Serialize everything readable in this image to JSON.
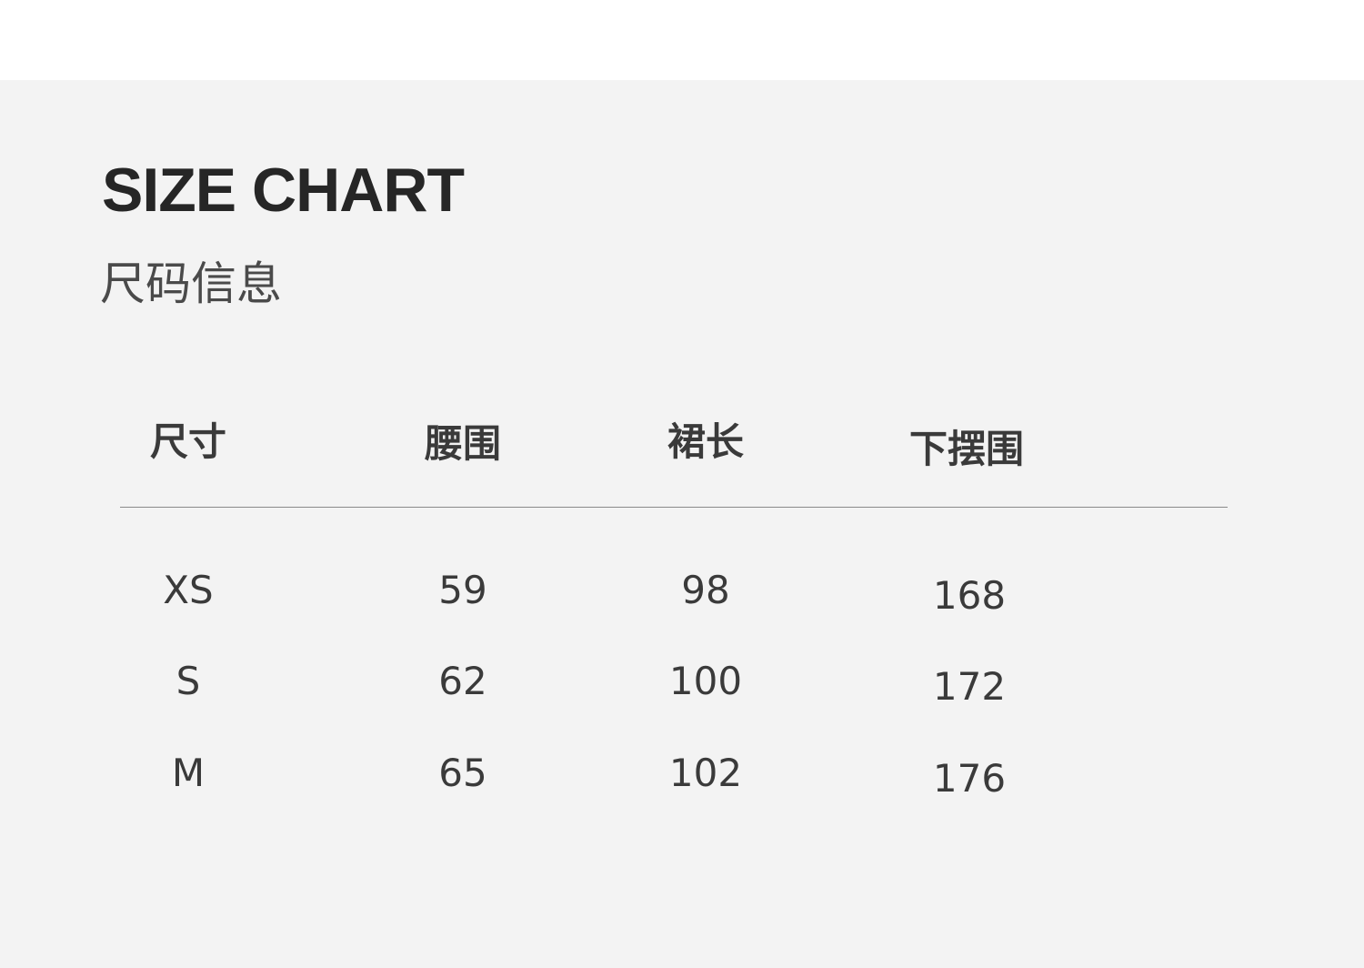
{
  "title": "SIZE CHART",
  "subtitle": "尺码信息",
  "table": {
    "headers": [
      "尺寸",
      "腰围",
      "裙长",
      "下摆围"
    ],
    "rows": [
      [
        "XS",
        "59",
        "98",
        "168"
      ],
      [
        "S",
        "62",
        "100",
        "172"
      ],
      [
        "M",
        "65",
        "102",
        "176"
      ]
    ]
  },
  "colors": {
    "background": "#f3f3f3",
    "text": "#333333"
  }
}
